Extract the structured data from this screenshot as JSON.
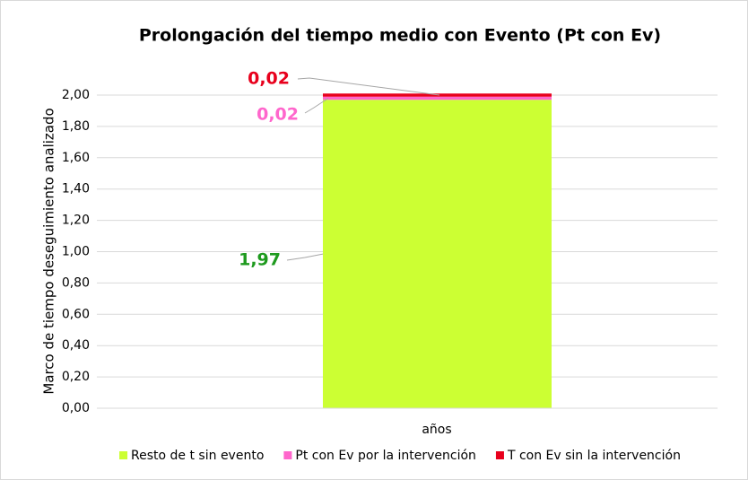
{
  "chart_data": {
    "type": "stacked_bar",
    "title": "Prolongación del tiempo medio con Evento (Pt con Ev)",
    "y_label": "Marco de tiempo deseguimiento analizado",
    "x_label": "años",
    "categories": [
      null
    ],
    "series": [
      {
        "name": "Resto de t sin evento",
        "color": "#ccff33",
        "label_color": "#1e9a1e",
        "values": [
          1.97
        ],
        "value_labels": [
          "1,97"
        ]
      },
      {
        "name": "Pt con Ev por la intervención",
        "color": "#ff66cc",
        "label_color": "#ff66cc",
        "values": [
          0.02
        ],
        "value_labels": [
          "0,02"
        ]
      },
      {
        "name": "T con Ev sin la intervención",
        "color": "#e8001c",
        "label_color": "#e8001c",
        "values": [
          0.02
        ],
        "value_labels": [
          "0,02"
        ]
      }
    ],
    "ylim": [
      0,
      2
    ],
    "yticks": [
      {
        "value": 0,
        "label": "0,00"
      },
      {
        "value": 0.2,
        "label": "0,20"
      },
      {
        "value": 0.4,
        "label": "0,40"
      },
      {
        "value": 0.6,
        "label": "0,60"
      },
      {
        "value": 0.8,
        "label": "0,80"
      },
      {
        "value": 1,
        "label": "1,00"
      },
      {
        "value": 1.2,
        "label": "1,20"
      },
      {
        "value": 1.4,
        "label": "1,40"
      },
      {
        "value": 1.6,
        "label": "1,60"
      },
      {
        "value": 1.8,
        "label": "1,80"
      },
      {
        "value": 2,
        "label": "2,00"
      }
    ],
    "grid": true,
    "legend": "bottom",
    "title_color": "#f25cc8"
  }
}
